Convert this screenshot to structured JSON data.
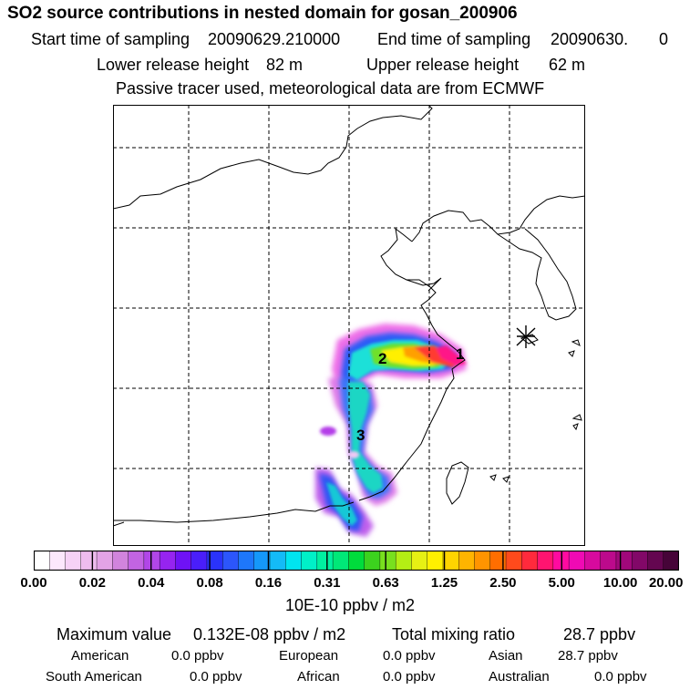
{
  "header": {
    "title": "SO2 source contributions in nested domain for gosan_200906",
    "start_label": "Start time of sampling",
    "start_value": "20090629.210000",
    "end_label": "End time of sampling",
    "end_value": "20090630.",
    "end_suffix": "0",
    "lower_label": "Lower release height",
    "lower_value": "82 m",
    "upper_label": "Upper release height",
    "upper_value": "62 m",
    "note": "Passive tracer used, meteorological data are from ECMWF"
  },
  "map": {
    "labels": [
      "1",
      "2",
      "3"
    ]
  },
  "colorbar": {
    "ticks": [
      "0.00",
      "0.02",
      "0.04",
      "0.08",
      "0.16",
      "0.31",
      "0.63",
      "1.25",
      "2.50",
      "5.00",
      "10.00",
      "20.00"
    ],
    "unit": "10E-10 ppbv / m2",
    "colors": [
      "#ffffff",
      "#fce8fc",
      "#f6d2f6",
      "#eebcee",
      "#e3a3e6",
      "#d184dd",
      "#c264e2",
      "#b146e8",
      "#9624f0",
      "#6f12f5",
      "#4a1efa",
      "#2a33fb",
      "#2c56fb",
      "#1e77fb",
      "#1598fa",
      "#14bbf7",
      "#00e5f0",
      "#00f0c8",
      "#00f0a0",
      "#00e878",
      "#00dc3c",
      "#3cd21e",
      "#78e01e",
      "#b4ee14",
      "#e6f014",
      "#fff000",
      "#ffd400",
      "#ffb400",
      "#ff9400",
      "#ff6e00",
      "#ff4a1c",
      "#ff2a3c",
      "#ff1470",
      "#ff0aa0",
      "#f00ab4",
      "#d70a9e",
      "#bc0a8c",
      "#a0087a",
      "#820868",
      "#640650",
      "#460438"
    ]
  },
  "stats": {
    "max_label": "Maximum value",
    "max_value": "0.132E-08 ppbv / m2",
    "total_label": "Total mixing ratio",
    "total_value": "28.7 ppbv",
    "regions": [
      {
        "name": "American",
        "value": "0.0 ppbv"
      },
      {
        "name": "European",
        "value": "0.0 ppbv"
      },
      {
        "name": "Asian",
        "value": "28.7 ppbv"
      },
      {
        "name": "South American",
        "value": "0.0 ppbv"
      },
      {
        "name": "African",
        "value": "0.0 ppbv"
      },
      {
        "name": "Australian",
        "value": "0.0 ppbv"
      }
    ]
  }
}
